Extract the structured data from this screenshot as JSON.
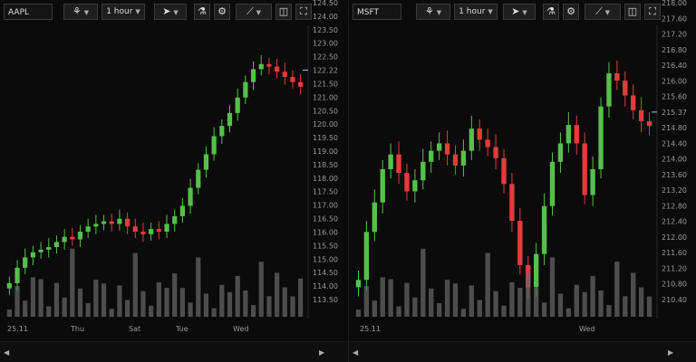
{
  "colors": {
    "up": "#55c04a",
    "down": "#e53b3b",
    "volume": "#6a6a6a",
    "bg": "#0b0b0b",
    "current": "#8fc6ff"
  },
  "left": {
    "symbol": "AAPL",
    "interval": "1 hour",
    "price_labels": [
      "124.50",
      "124.00",
      "123.50",
      "123.00",
      "122.50",
      "122.22",
      "121.50",
      "121.00",
      "120.50",
      "120.00",
      "119.50",
      "119.00",
      "118.50",
      "118.00",
      "117.50",
      "117.00",
      "116.50",
      "116.00",
      "115.50",
      "115.00",
      "114.50",
      "114.00",
      "113.50"
    ],
    "current_price": "122.22",
    "x_labels": [
      "25.11",
      "Thu",
      "Sat",
      "Tue",
      "Wed"
    ]
  },
  "right": {
    "symbol": "MSFT",
    "interval": "1 hour",
    "price_labels": [
      "218.00",
      "217.60",
      "217.20",
      "216.80",
      "216.40",
      "216.00",
      "215.60",
      "215.37",
      "214.80",
      "214.40",
      "214.00",
      "213.60",
      "213.20",
      "212.80",
      "212.40",
      "212.00",
      "211.60",
      "211.20",
      "210.80",
      "210.40"
    ],
    "current_price": "215.37",
    "x_labels": [
      "25.11",
      "Wed"
    ]
  },
  "icons": {
    "indicators": "indicators-icon",
    "cursor": "cursor-icon",
    "flask": "flask-icon",
    "gear": "gear-icon",
    "line": "trendline-icon",
    "layout": "layout-icon",
    "fullscreen": "fullscreen-icon"
  },
  "chart_data": [
    {
      "type": "candlestick",
      "title": "AAPL",
      "y_axis_labels": [
        "124.50",
        "124.00",
        "123.50",
        "123.00",
        "122.50",
        "122.22",
        "121.50",
        "121.00",
        "120.50",
        "120.00",
        "119.50",
        "119.00",
        "118.50",
        "118.00",
        "117.50",
        "117.00",
        "116.50",
        "116.00",
        "115.50",
        "115.00",
        "114.50",
        "114.00",
        "113.50"
      ],
      "x_axis_labels": [
        "25.11",
        "Thu",
        "Sat",
        "Tue",
        "Wed"
      ],
      "ylim": [
        113.3,
        124.6
      ],
      "current": 122.22,
      "close": [
        114.6,
        115.2,
        115.6,
        115.8,
        115.9,
        116.0,
        116.2,
        116.4,
        116.3,
        116.6,
        116.8,
        116.9,
        117.0,
        116.9,
        117.1,
        116.8,
        116.6,
        116.5,
        116.7,
        116.6,
        116.9,
        117.2,
        117.6,
        118.3,
        119.0,
        119.6,
        120.3,
        120.7,
        121.2,
        121.8,
        122.4,
        122.9,
        123.1,
        123.0,
        122.8,
        122.6,
        122.4,
        122.22
      ]
    },
    {
      "type": "candlestick",
      "title": "MSFT",
      "y_axis_labels": [
        "218.00",
        "217.60",
        "217.20",
        "216.80",
        "216.40",
        "216.00",
        "215.60",
        "215.37",
        "214.80",
        "214.40",
        "214.00",
        "213.60",
        "213.20",
        "212.80",
        "212.40",
        "212.00",
        "211.60",
        "211.20",
        "210.80",
        "210.40"
      ],
      "x_axis_labels": [
        "25.11",
        "Wed"
      ],
      "ylim": [
        210.2,
        218.1
      ],
      "current": 215.37,
      "close": [
        211.2,
        212.5,
        213.3,
        214.2,
        214.6,
        214.1,
        213.6,
        213.9,
        214.4,
        214.7,
        214.9,
        214.6,
        214.3,
        214.7,
        215.3,
        215.0,
        214.8,
        214.5,
        213.8,
        212.8,
        211.6,
        211.0,
        211.9,
        213.2,
        214.4,
        214.9,
        215.4,
        214.9,
        213.5,
        214.2,
        215.9,
        216.8,
        216.6,
        216.2,
        215.8,
        215.5,
        215.37
      ]
    }
  ]
}
